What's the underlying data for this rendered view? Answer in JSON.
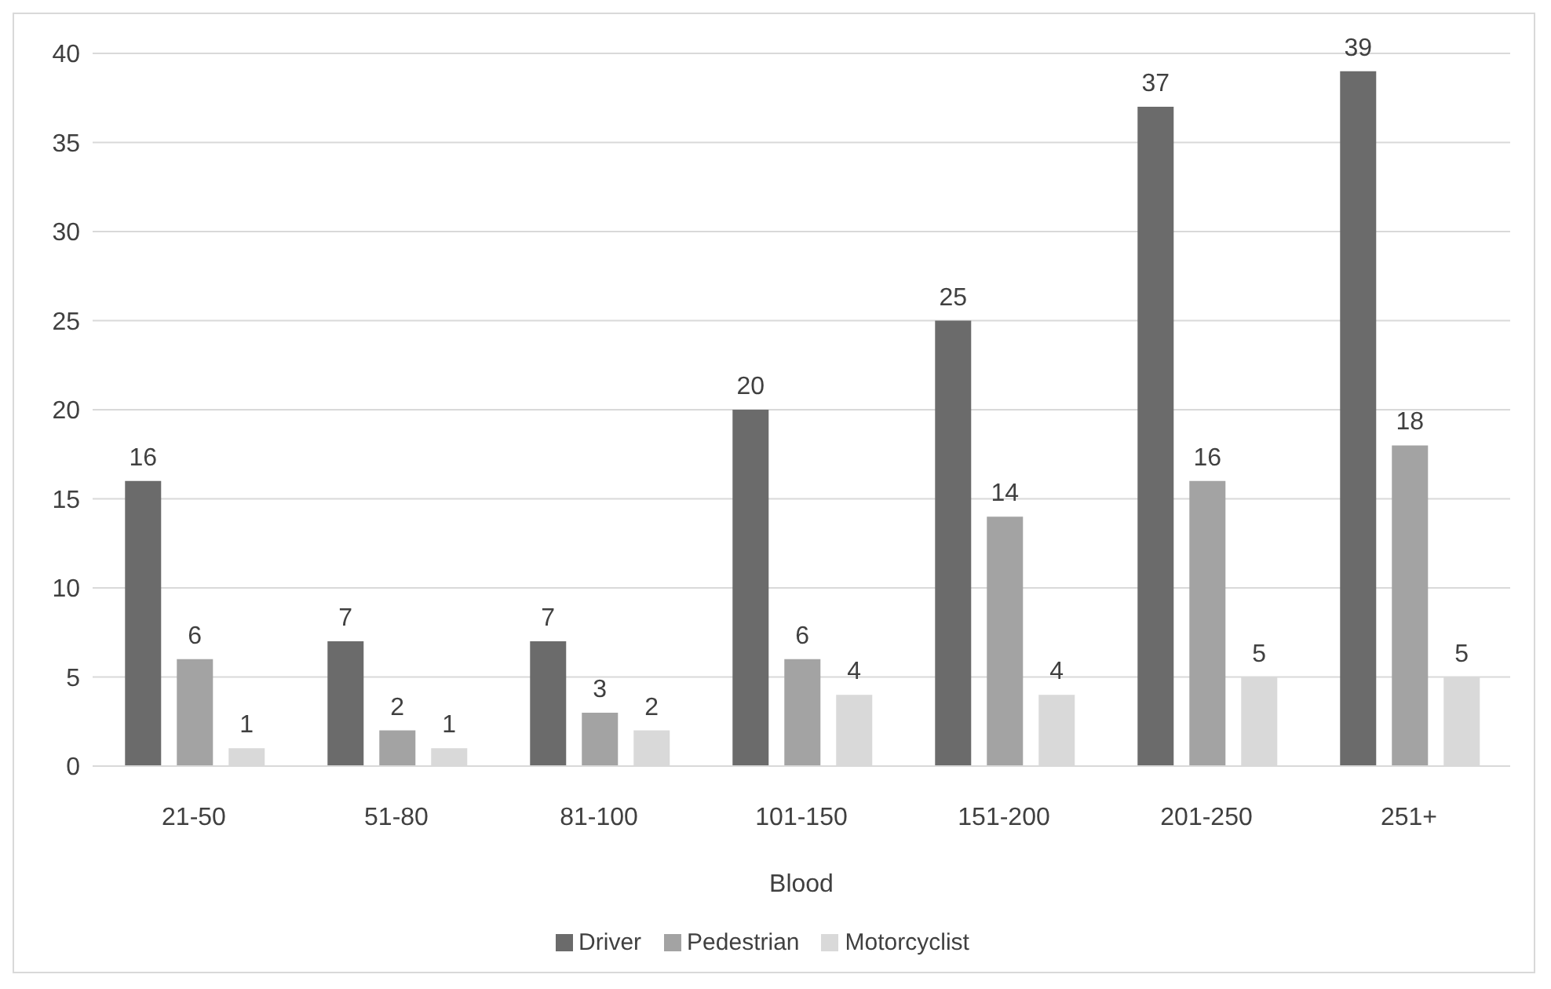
{
  "chart_data": {
    "type": "bar",
    "xlabel": "Blood",
    "categories": [
      "21-50",
      "51-80",
      "81-100",
      "101-150",
      "151-200",
      "201-250",
      "251+"
    ],
    "series": [
      {
        "name": "Driver",
        "color": "#6b6b6b",
        "values": [
          16,
          7,
          7,
          20,
          25,
          37,
          39
        ]
      },
      {
        "name": "Pedestrian",
        "color": "#a3a3a3",
        "values": [
          6,
          2,
          3,
          6,
          14,
          16,
          18
        ]
      },
      {
        "name": "Motorcyclist",
        "color": "#d9d9d9",
        "values": [
          1,
          1,
          2,
          4,
          4,
          5,
          5
        ]
      }
    ],
    "ylim": [
      0,
      40
    ],
    "yticks": [
      0,
      5,
      10,
      15,
      20,
      25,
      30,
      35,
      40
    ],
    "grid": "y",
    "legend": "bottom",
    "data_labels": true
  }
}
